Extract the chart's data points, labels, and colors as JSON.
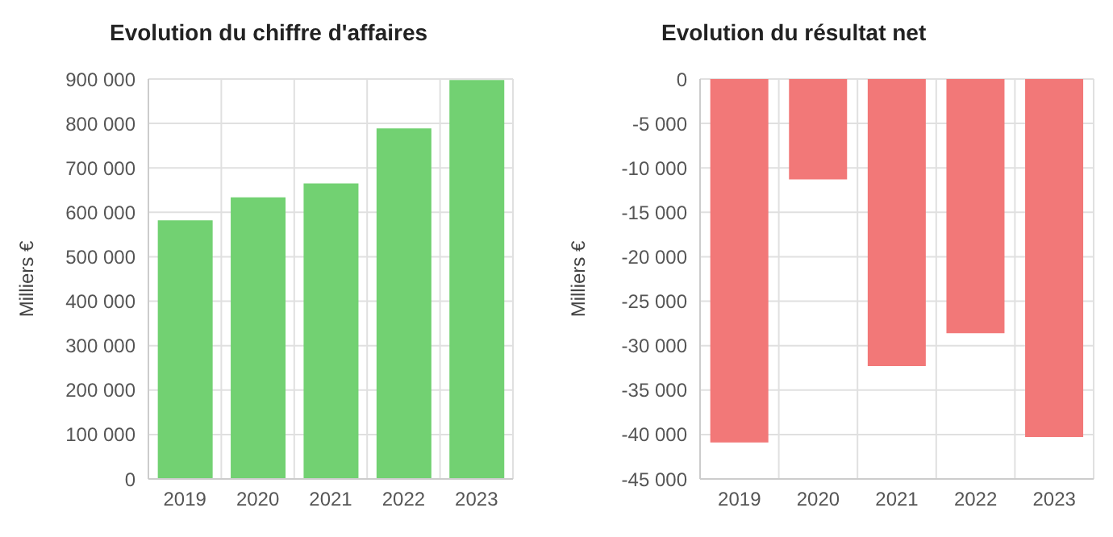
{
  "chart_data": [
    {
      "type": "bar",
      "title": "Evolution du chiffre d'affaires",
      "ylabel": "Milliers €",
      "categories": [
        "2019",
        "2020",
        "2021",
        "2022",
        "2023"
      ],
      "values": [
        580000,
        632000,
        663000,
        787000,
        896000
      ],
      "color": "#72d172",
      "ylim": [
        0,
        900000
      ],
      "yticks": [
        {
          "value": 0,
          "label": "0"
        },
        {
          "value": 100000,
          "label": "100 000"
        },
        {
          "value": 200000,
          "label": "200 000"
        },
        {
          "value": 300000,
          "label": "300 000"
        },
        {
          "value": 400000,
          "label": "400 000"
        },
        {
          "value": 500000,
          "label": "500 000"
        },
        {
          "value": 600000,
          "label": "600 000"
        },
        {
          "value": 700000,
          "label": "700 000"
        },
        {
          "value": 800000,
          "label": "800 000"
        },
        {
          "value": 900000,
          "label": "900 000"
        }
      ],
      "grid": true
    },
    {
      "type": "bar",
      "title": "Evolution du résultat net",
      "ylabel": "Milliers €",
      "categories": [
        "2019",
        "2020",
        "2021",
        "2022",
        "2023"
      ],
      "values": [
        -40800,
        -11200,
        -32200,
        -28500,
        -40200
      ],
      "color": "#f27878",
      "ylim": [
        -45000,
        0
      ],
      "yticks": [
        {
          "value": 0,
          "label": "0"
        },
        {
          "value": -5000,
          "label": "-5 000"
        },
        {
          "value": -10000,
          "label": "-10 000"
        },
        {
          "value": -15000,
          "label": "-15 000"
        },
        {
          "value": -20000,
          "label": "-20 000"
        },
        {
          "value": -25000,
          "label": "-25 000"
        },
        {
          "value": -30000,
          "label": "-30 000"
        },
        {
          "value": -35000,
          "label": "-35 000"
        },
        {
          "value": -40000,
          "label": "-40 000"
        },
        {
          "value": -45000,
          "label": "-45 000"
        }
      ],
      "grid": true
    }
  ]
}
